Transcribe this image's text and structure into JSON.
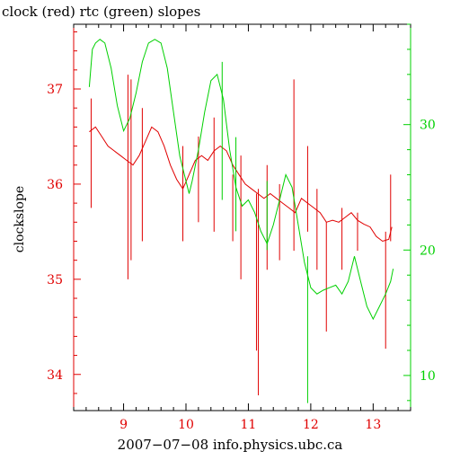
{
  "title": "clock (red) rtc (green) slopes",
  "footer": "2007−07−08 info.physics.ubc.ca",
  "chart_data": {
    "type": "line",
    "ylabel": "clockslope",
    "xlim": [
      8.2,
      13.6
    ],
    "x_ticks": [
      9,
      10,
      11,
      12,
      13
    ],
    "left_axis": {
      "ylim": [
        33.62,
        37.68
      ],
      "ticks": [
        34,
        35,
        36,
        37
      ],
      "color": "#e00000"
    },
    "right_axis": {
      "ylim": [
        7.2,
        38.0
      ],
      "ticks": [
        10,
        20,
        30
      ],
      "color": "#00d000"
    },
    "grid": false,
    "series": [
      {
        "name": "clock",
        "axis": "left",
        "color": "#e00000",
        "x": [
          8.45,
          8.55,
          8.65,
          8.75,
          8.85,
          8.95,
          9.05,
          9.15,
          9.25,
          9.35,
          9.45,
          9.55,
          9.65,
          9.75,
          9.85,
          9.95,
          10.05,
          10.15,
          10.25,
          10.35,
          10.45,
          10.55,
          10.65,
          10.75,
          10.85,
          10.95,
          11.05,
          11.15,
          11.25,
          11.35,
          11.45,
          11.55,
          11.65,
          11.75,
          11.85,
          11.95,
          12.05,
          12.15,
          12.25,
          12.35,
          12.45,
          12.55,
          12.65,
          12.75,
          12.85,
          12.95,
          13.05,
          13.15,
          13.25,
          13.3
        ],
        "values": [
          36.55,
          36.6,
          36.5,
          36.4,
          36.35,
          36.3,
          36.25,
          36.2,
          36.3,
          36.45,
          36.6,
          36.55,
          36.4,
          36.2,
          36.05,
          35.95,
          36.1,
          36.25,
          36.3,
          36.25,
          36.35,
          36.4,
          36.35,
          36.2,
          36.1,
          36.0,
          35.95,
          35.9,
          35.85,
          35.9,
          35.85,
          35.8,
          35.75,
          35.7,
          35.85,
          35.8,
          35.75,
          35.7,
          35.6,
          35.62,
          35.6,
          35.65,
          35.7,
          35.62,
          35.58,
          35.55,
          35.45,
          35.4,
          35.42,
          35.55
        ],
        "spikes": [
          {
            "x": 8.48,
            "values": [
              35.75,
              36.9
            ]
          },
          {
            "x": 9.07,
            "values": [
              35.0,
              37.15
            ]
          },
          {
            "x": 9.12,
            "values": [
              35.2,
              37.1
            ]
          },
          {
            "x": 9.3,
            "values": [
              35.4,
              36.8
            ]
          },
          {
            "x": 9.95,
            "values": [
              35.4,
              36.4
            ]
          },
          {
            "x": 10.2,
            "values": [
              35.6,
              36.5
            ]
          },
          {
            "x": 10.45,
            "values": [
              35.5,
              36.7
            ]
          },
          {
            "x": 10.75,
            "values": [
              35.4,
              36.1
            ]
          },
          {
            "x": 10.88,
            "values": [
              35.0,
              36.3
            ]
          },
          {
            "x": 11.13,
            "values": [
              34.25,
              35.9
            ]
          },
          {
            "x": 11.16,
            "values": [
              33.78,
              35.95
            ]
          },
          {
            "x": 11.3,
            "values": [
              35.1,
              36.2
            ]
          },
          {
            "x": 11.5,
            "values": [
              35.2,
              36.0
            ]
          },
          {
            "x": 11.73,
            "values": [
              35.3,
              37.1
            ]
          },
          {
            "x": 11.95,
            "values": [
              35.5,
              36.4
            ]
          },
          {
            "x": 12.1,
            "values": [
              35.1,
              35.95
            ]
          },
          {
            "x": 12.25,
            "values": [
              34.45,
              35.6
            ]
          },
          {
            "x": 12.5,
            "values": [
              35.1,
              35.75
            ]
          },
          {
            "x": 12.75,
            "values": [
              35.3,
              35.7
            ]
          },
          {
            "x": 13.2,
            "values": [
              34.27,
              35.5
            ]
          },
          {
            "x": 13.28,
            "values": [
              35.4,
              36.1
            ]
          }
        ]
      },
      {
        "name": "rtc",
        "axis": "right",
        "color": "#00d000",
        "x": [
          8.45,
          8.5,
          8.55,
          8.62,
          8.7,
          8.8,
          8.9,
          9.0,
          9.1,
          9.2,
          9.3,
          9.4,
          9.5,
          9.6,
          9.7,
          9.8,
          9.9,
          10.0,
          10.05,
          10.1,
          10.2,
          10.3,
          10.4,
          10.5,
          10.6,
          10.7,
          10.8,
          10.9,
          11.0,
          11.1,
          11.2,
          11.3,
          11.4,
          11.5,
          11.6,
          11.7,
          11.8,
          11.9,
          12.0,
          12.1,
          12.2,
          12.3,
          12.4,
          12.5,
          12.6,
          12.7,
          12.8,
          12.9,
          13.0,
          13.1,
          13.2,
          13.28,
          13.32
        ],
        "values": [
          33,
          36,
          36.5,
          36.8,
          36.5,
          34.5,
          31.5,
          29.5,
          30.5,
          32.5,
          35,
          36.5,
          36.8,
          36.5,
          34.5,
          31,
          27.5,
          25.5,
          24.5,
          25.5,
          28,
          31,
          33.5,
          34,
          32,
          28,
          25,
          23.5,
          24,
          23,
          21.5,
          20.5,
          22,
          24,
          26,
          25,
          22,
          19,
          17,
          16.5,
          16.8,
          17,
          17.2,
          16.5,
          17.5,
          19.5,
          17.5,
          15.5,
          14.5,
          15.5,
          16.5,
          17.5,
          18.5
        ],
        "spikes": [
          {
            "x": 10.58,
            "values": [
              24,
              35
            ]
          },
          {
            "x": 10.8,
            "values": [
              21.5,
              29
            ]
          },
          {
            "x": 11.95,
            "values": [
              7.8,
              19.5
            ]
          },
          {
            "x": 11.3,
            "values": [
              20,
              25.5
            ]
          }
        ]
      }
    ]
  }
}
